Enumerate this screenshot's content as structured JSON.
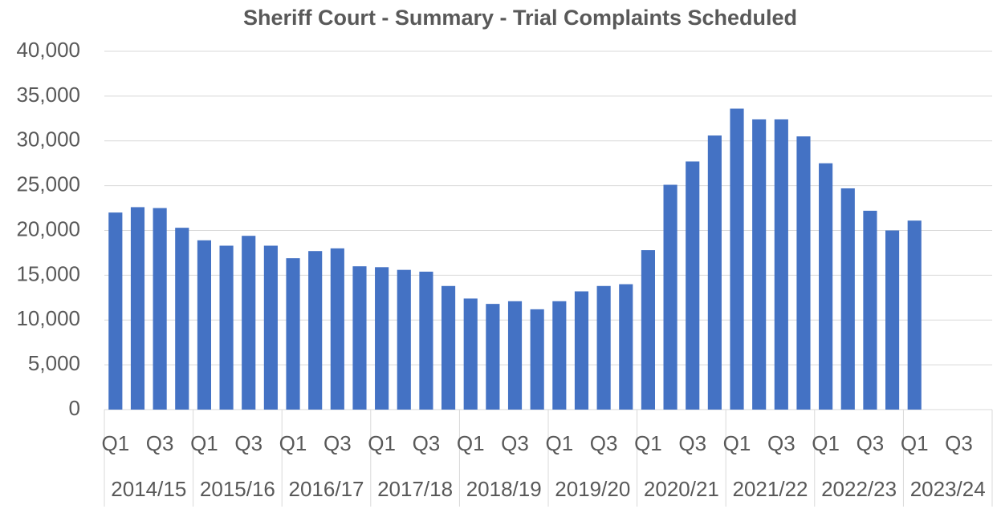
{
  "chart_data": {
    "type": "bar",
    "title": "Sheriff Court - Summary - Trial Complaints Scheduled",
    "categories": [
      "Q1",
      null,
      "Q3",
      null,
      "Q1",
      null,
      "Q3",
      null,
      "Q1",
      null,
      "Q3",
      null,
      "Q1",
      null,
      "Q3",
      null,
      "Q1",
      null,
      "Q3",
      null,
      "Q1",
      null,
      "Q3",
      null,
      "Q1",
      null,
      "Q3",
      null,
      "Q1",
      null,
      "Q3",
      null,
      "Q1",
      null,
      "Q3",
      null,
      "Q1",
      null,
      "Q3",
      null
    ],
    "groups": [
      "2014/15",
      "2015/16",
      "2016/17",
      "2017/18",
      "2018/19",
      "2019/20",
      "2020/21",
      "2021/22",
      "2022/23",
      "2023/24"
    ],
    "values": [
      22000,
      22600,
      22500,
      20300,
      18900,
      18300,
      19400,
      18300,
      16900,
      17700,
      18000,
      16000,
      15900,
      15600,
      15400,
      13800,
      12400,
      11800,
      12100,
      11200,
      12100,
      13200,
      13800,
      14000,
      17800,
      25100,
      27700,
      30600,
      33600,
      32400,
      32400,
      30500,
      27500,
      24700,
      22200,
      20000,
      21100,
      null,
      null,
      null
    ],
    "color": "#4472c4",
    "ylim": [
      0,
      40000
    ],
    "yticks": [
      0,
      {
        "value": 5000,
        "label": "5,000"
      },
      {
        "value": 10000,
        "label": "10,000"
      },
      {
        "value": 15000,
        "label": "15,000"
      },
      {
        "value": 20000,
        "label": "20,000"
      },
      {
        "value": 25000,
        "label": "25,000"
      },
      {
        "value": 30000,
        "label": "30,000"
      },
      {
        "value": 35000,
        "label": "35,000"
      },
      {
        "value": 40000,
        "label": "40,000"
      }
    ],
    "grid": true
  }
}
